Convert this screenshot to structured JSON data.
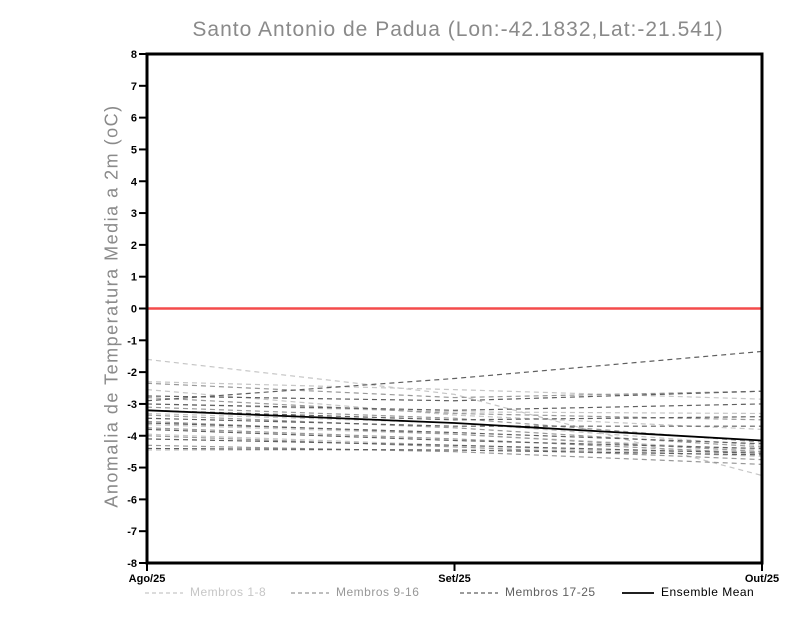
{
  "chart_data": {
    "type": "line",
    "title": "Santo Antonio de Padua (Lon:-42.1832,Lat:-21.541)",
    "ylabel": "Anomalia de Temperatura Media a 2m (oC)",
    "xlabel": "",
    "x_categories": [
      "Ago/25",
      "Set/25",
      "Out/25"
    ],
    "ylim": [
      -8,
      8
    ],
    "yticks": [
      8,
      7,
      6,
      5,
      4,
      3,
      2,
      1,
      0,
      -1,
      -2,
      -3,
      -4,
      -5,
      -6,
      -7,
      -8
    ],
    "grid": false,
    "legend_position": "bottom",
    "zero_line": {
      "value": 0,
      "color": "#f44b4b"
    },
    "colors": {
      "group1": "#c6c6c6",
      "group2": "#989898",
      "group3": "#5f5f5f",
      "mean": "#000000",
      "frame": "#000000",
      "title_text": "#8a8a8a",
      "tick_text": "#000000"
    },
    "series": [
      {
        "name": "Membro 1",
        "group": 1,
        "values": [
          -1.6,
          -2.7,
          -5.25
        ]
      },
      {
        "name": "Membro 2",
        "group": 1,
        "values": [
          -2.3,
          -2.55,
          -2.85
        ]
      },
      {
        "name": "Membro 3",
        "group": 1,
        "values": [
          -2.55,
          -3.35,
          -3.8
        ]
      },
      {
        "name": "Membro 4",
        "group": 1,
        "values": [
          -3.0,
          -3.25,
          -3.3
        ]
      },
      {
        "name": "Membro 5",
        "group": 1,
        "values": [
          -3.3,
          -3.6,
          -4.3
        ]
      },
      {
        "name": "Membro 6",
        "group": 1,
        "values": [
          -3.65,
          -3.95,
          -4.45
        ]
      },
      {
        "name": "Membro 7",
        "group": 1,
        "values": [
          -3.95,
          -4.3,
          -4.65
        ]
      },
      {
        "name": "Membro 8",
        "group": 1,
        "values": [
          -4.45,
          -4.45,
          -4.5
        ]
      },
      {
        "name": "Membro 9",
        "group": 2,
        "values": [
          -2.35,
          -2.8,
          -2.6
        ]
      },
      {
        "name": "Membro 10",
        "group": 2,
        "values": [
          -2.8,
          -3.3,
          -3.5
        ]
      },
      {
        "name": "Membro 11",
        "group": 2,
        "values": [
          -3.1,
          -3.45,
          -4.2
        ]
      },
      {
        "name": "Membro 12",
        "group": 2,
        "values": [
          -3.35,
          -3.75,
          -4.35
        ]
      },
      {
        "name": "Membro 13",
        "group": 2,
        "values": [
          -3.55,
          -3.95,
          -4.5
        ]
      },
      {
        "name": "Membro 14",
        "group": 2,
        "values": [
          -3.75,
          -4.1,
          -4.55
        ]
      },
      {
        "name": "Membro 15",
        "group": 2,
        "values": [
          -4.0,
          -4.35,
          -4.75
        ]
      },
      {
        "name": "Membro 16",
        "group": 2,
        "values": [
          -4.3,
          -4.5,
          -4.9
        ]
      },
      {
        "name": "Membro 17",
        "group": 3,
        "values": [
          -2.9,
          -2.2,
          -1.35
        ]
      },
      {
        "name": "Membro 18",
        "group": 3,
        "values": [
          -2.75,
          -2.9,
          -2.6
        ]
      },
      {
        "name": "Membro 19",
        "group": 3,
        "values": [
          -3.0,
          -3.2,
          -3.0
        ]
      },
      {
        "name": "Membro 20",
        "group": 3,
        "values": [
          -3.2,
          -3.5,
          -3.4
        ]
      },
      {
        "name": "Membro 21",
        "group": 3,
        "values": [
          -3.45,
          -3.7,
          -3.7
        ]
      },
      {
        "name": "Membro 22",
        "group": 3,
        "values": [
          -3.6,
          -3.9,
          -4.25
        ]
      },
      {
        "name": "Membro 23",
        "group": 3,
        "values": [
          -3.8,
          -4.15,
          -4.4
        ]
      },
      {
        "name": "Membro 24",
        "group": 3,
        "values": [
          -4.1,
          -4.3,
          -4.55
        ]
      },
      {
        "name": "Membro 25",
        "group": 3,
        "values": [
          -4.4,
          -4.45,
          -4.6
        ]
      },
      {
        "name": "Ensemble Mean",
        "group": "mean",
        "values": [
          -3.2,
          -3.6,
          -4.15
        ]
      }
    ],
    "legend": [
      {
        "label": "Membros 1-8",
        "style": "dashed",
        "color": "#c6c6c6"
      },
      {
        "label": "Membros 9-16",
        "style": "dashed",
        "color": "#989898"
      },
      {
        "label": "Membros 17-25",
        "style": "dashed",
        "color": "#5f5f5f"
      },
      {
        "label": "Ensemble Mean",
        "style": "solid",
        "color": "#000000"
      }
    ]
  }
}
